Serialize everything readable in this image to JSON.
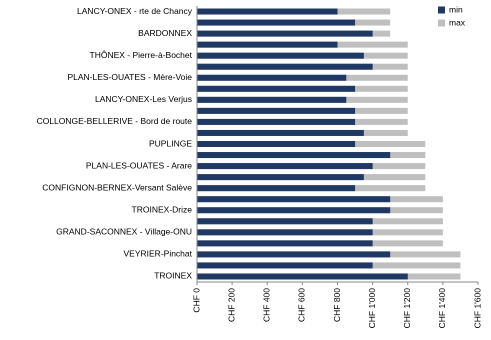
{
  "chart_data": {
    "type": "bar",
    "orientation": "horizontal",
    "overlap": true,
    "categories": [
      "LANCY-ONEX - rte de Chancy",
      null,
      "BARDONNEX",
      null,
      "THÔNEX - Pierre-à-Bochet",
      null,
      "PLAN-LES-OUATES - Mère-Voie",
      null,
      "LANCY-ONEX-Les Verjus",
      null,
      "COLLONGE-BELLERIVE - Bord de route",
      null,
      "PUPLINGE",
      null,
      "PLAN-LES-OUATES - Arare",
      null,
      "CONFIGNON-BERNEX-Versant Salève",
      null,
      "TROINEX-Drize",
      null,
      "GRAND-SACONNEX - Village-ONU",
      null,
      "VEYRIER-Pinchat",
      null,
      "TROINEX"
    ],
    "series": [
      {
        "name": "max",
        "color": "#bfbfbf",
        "values": [
          1100,
          1100,
          1100,
          1200,
          1200,
          1200,
          1200,
          1200,
          1200,
          1200,
          1200,
          1200,
          1300,
          1300,
          1300,
          1300,
          1300,
          1400,
          1400,
          1400,
          1400,
          1400,
          1500,
          1500,
          1500
        ]
      },
      {
        "name": "min",
        "color": "#1f3864",
        "values": [
          800,
          900,
          1000,
          800,
          950,
          1000,
          850,
          900,
          850,
          900,
          900,
          950,
          900,
          1100,
          1000,
          950,
          900,
          1100,
          1100,
          1000,
          1000,
          1000,
          1100,
          1000,
          1200
        ]
      }
    ],
    "xlim": [
      0,
      1600
    ],
    "xticks": [
      {
        "value": 0,
        "label": "CHF 0"
      },
      {
        "value": 200,
        "label": "CHF 200"
      },
      {
        "value": 400,
        "label": "CHF 400"
      },
      {
        "value": 600,
        "label": "CHF 600"
      },
      {
        "value": 800,
        "label": "CHF 800"
      },
      {
        "value": 1000,
        "label": "CHF 1'000"
      },
      {
        "value": 1200,
        "label": "CHF 1'200"
      },
      {
        "value": 1400,
        "label": "CHF 1'400"
      },
      {
        "value": 1600,
        "label": "CHF 1'600"
      }
    ],
    "grid": false,
    "legend": "top-right"
  }
}
